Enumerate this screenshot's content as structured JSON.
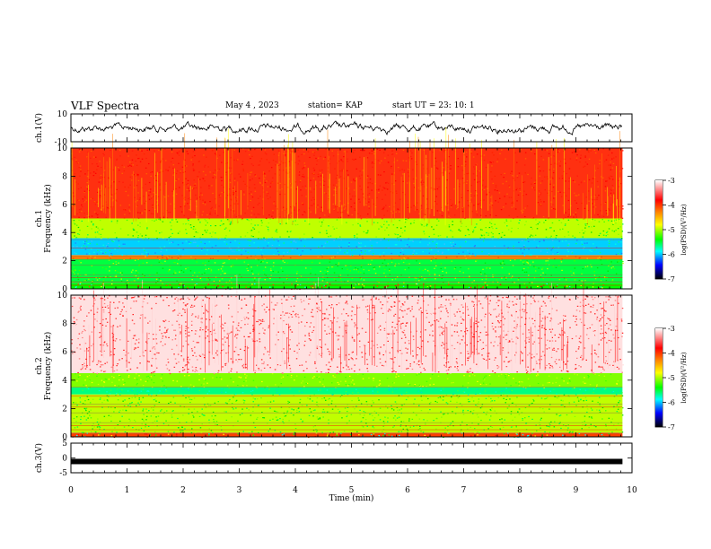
{
  "header": {
    "title": "VLF Spectra",
    "date": "May 4 , 2023",
    "station": "station= KAP",
    "start": "start UT = 23: 10: 1"
  },
  "chart_data": [
    {
      "type": "line",
      "name": "ch1-waveform",
      "ylabel": "ch.1(V)",
      "ylim": [
        -10,
        10
      ],
      "yticks": [
        "10",
        "-10"
      ],
      "xlim": [
        0,
        10
      ]
    },
    {
      "type": "heatmap",
      "name": "ch1-spectrogram",
      "ylabel": "ch.1\nFrequency (kHz)",
      "ylim": [
        0,
        10
      ],
      "yticks": [
        "0",
        "2",
        "4",
        "6",
        "8",
        "10"
      ],
      "xlim": [
        0,
        10
      ],
      "colorbar": {
        "label": "log(PSD)(V²/Hz)",
        "range": [
          -7,
          -3
        ],
        "ticks": [
          "-3",
          "-4",
          "-5",
          "-6",
          "-7"
        ]
      },
      "bands_khz": [
        {
          "from": 0,
          "to": 0.4,
          "level": "mixed"
        },
        {
          "from": 0.4,
          "to": 2.1,
          "level": "green"
        },
        {
          "from": 2.1,
          "to": 2.4,
          "level": "yellow-red"
        },
        {
          "from": 2.4,
          "to": 3.6,
          "level": "cyan"
        },
        {
          "from": 3.6,
          "to": 5.0,
          "level": "green"
        },
        {
          "from": 5.0,
          "to": 10.0,
          "level": "red"
        }
      ]
    },
    {
      "type": "heatmap",
      "name": "ch2-spectrogram",
      "ylabel": "ch.2\nFrequency (kHz)",
      "ylim": [
        0,
        10
      ],
      "yticks": [
        "0",
        "2",
        "4",
        "6",
        "8",
        "10"
      ],
      "xlim": [
        0,
        10
      ],
      "colorbar": {
        "label": "log(PSD)(V²/Hz)",
        "range": [
          -7,
          -3
        ],
        "ticks": [
          "-3",
          "-4",
          "-5",
          "-6",
          "-7"
        ]
      },
      "bands_khz": [
        {
          "from": 0,
          "to": 0.3,
          "level": "mixed"
        },
        {
          "from": 0.3,
          "to": 3.0,
          "level": "green"
        },
        {
          "from": 3.0,
          "to": 3.5,
          "level": "green-cyan"
        },
        {
          "from": 3.5,
          "to": 4.5,
          "level": "green-yellow"
        },
        {
          "from": 4.5,
          "to": 10.0,
          "level": "red-white"
        }
      ]
    },
    {
      "type": "line",
      "name": "ch3-waveform",
      "ylabel": "ch.3(V)",
      "ylim": [
        -5,
        5
      ],
      "yticks": [
        "5",
        "0",
        "-5"
      ],
      "xlim": [
        0,
        10
      ],
      "baseline_v": -1.2
    }
  ],
  "x_axis": {
    "label": "Time (min)",
    "ticks": [
      "0",
      "1",
      "2",
      "3",
      "4",
      "5",
      "6",
      "7",
      "8",
      "9",
      "10"
    ],
    "data_end_min": 9.83
  }
}
